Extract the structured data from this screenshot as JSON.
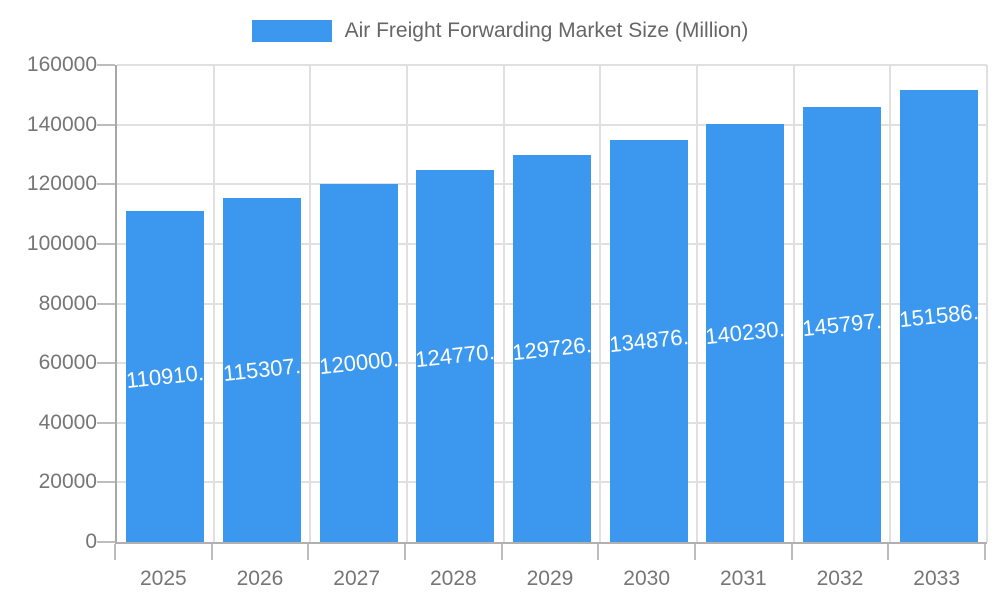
{
  "legend": {
    "label": "Air Freight Forwarding Market Size (Million)",
    "swatch_color": "#3b98ee"
  },
  "chart_data": {
    "type": "bar",
    "title": "Air Freight Forwarding Market Size (Million)",
    "categories": [
      "2025",
      "2026",
      "2027",
      "2028",
      "2029",
      "2030",
      "2031",
      "2032",
      "2033"
    ],
    "values": [
      110910,
      115307,
      120000,
      124770,
      129726,
      134876,
      140230,
      145797,
      151586
    ],
    "bar_labels": [
      "110910.",
      "115307.",
      "120000.",
      "124770.",
      "129726.",
      "134876.",
      "140230.",
      "145797.",
      "151586."
    ],
    "series_name": "Air Freight Forwarding Market Size (Million)",
    "xlabel": "",
    "ylabel": "",
    "ylim": [
      0,
      160000
    ],
    "y_ticks": [
      0,
      20000,
      40000,
      60000,
      80000,
      100000,
      120000,
      140000,
      160000
    ],
    "y_tick_labels": [
      "0",
      "20000",
      "40000",
      "60000",
      "80000",
      "100000",
      "120000",
      "140000",
      "160000"
    ],
    "grid": true,
    "legend_position": "top",
    "bar_color": "#3b98ee",
    "bar_label_color": "#ffffff",
    "axis_text_color": "#767676",
    "grid_color": "#e0e0e0"
  }
}
